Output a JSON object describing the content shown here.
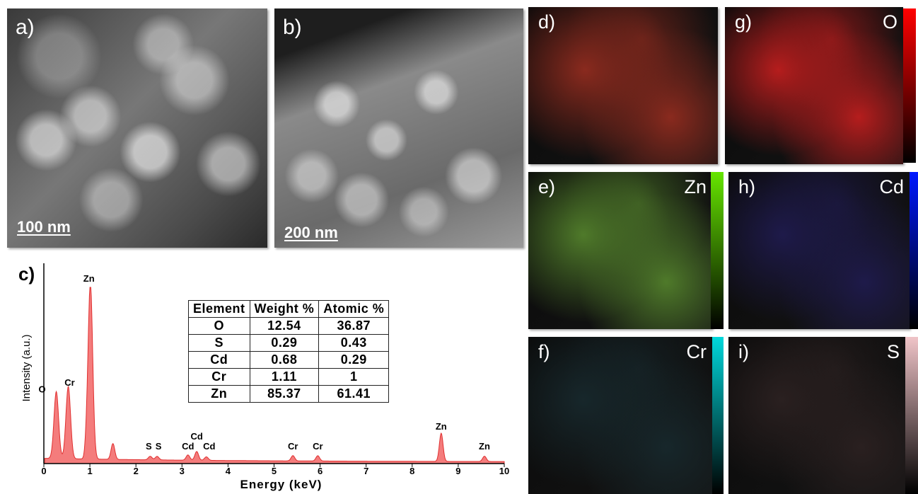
{
  "panels": {
    "a": {
      "label": "a)",
      "scale_bar": "100 nm"
    },
    "b": {
      "label": "b)",
      "scale_bar": "200 nm"
    },
    "c": {
      "label": "c)"
    }
  },
  "maps": [
    {
      "key": "d",
      "label": "d)",
      "element": "",
      "color": "#8a2a1e",
      "colorbar": ""
    },
    {
      "key": "g",
      "label": "g)",
      "element": "O",
      "color": "#b51d1d",
      "colorbar": "#ff0000"
    },
    {
      "key": "e",
      "label": "e)",
      "element": "Zn",
      "color": "#4f7a2a",
      "colorbar": "#66e600"
    },
    {
      "key": "h",
      "label": "h)",
      "element": "Cd",
      "color": "#1e1a4a",
      "colorbar": "#0018ff"
    },
    {
      "key": "f",
      "label": "f)",
      "element": "Cr",
      "color": "#17272b",
      "colorbar": "#00d8dc"
    },
    {
      "key": "i",
      "label": "i)",
      "element": "S",
      "color": "#2a2020",
      "colorbar": "#f0c4c8"
    }
  ],
  "composition_table": {
    "headers": [
      "Element",
      "Weight %",
      "Atomic %"
    ],
    "rows": [
      [
        "O",
        "12.54",
        "36.87"
      ],
      [
        "S",
        "0.29",
        "0.43"
      ],
      [
        "Cd",
        "0.68",
        "0.29"
      ],
      [
        "Cr",
        "1.11",
        "1"
      ],
      [
        "Zn",
        "85.37",
        "61.41"
      ]
    ]
  },
  "chart_data": {
    "type": "area",
    "xlabel": "Energy (keV)",
    "ylabel": "Intensity (a.u.)",
    "xlim": [
      0,
      10
    ],
    "xticks": [
      0,
      1,
      2,
      3,
      4,
      5,
      6,
      7,
      8,
      9,
      10
    ],
    "fill_color": "#f47c7c",
    "line_color": "#e03030",
    "peaks": [
      {
        "label": "O",
        "x": 0.27,
        "height": 0.38
      },
      {
        "label": "Cr",
        "x": 0.53,
        "height": 0.41
      },
      {
        "label": "Zn",
        "x": 1.01,
        "height": 1.0
      },
      {
        "label": "S",
        "x": 2.31,
        "height": 0.02
      },
      {
        "label": "S",
        "x": 2.46,
        "height": 0.02
      },
      {
        "label": "Cd",
        "x": 3.13,
        "height": 0.03
      },
      {
        "label": "Cd",
        "x": 3.32,
        "height": 0.05
      },
      {
        "label": "Cd",
        "x": 3.53,
        "height": 0.02
      },
      {
        "label": "Cr",
        "x": 5.41,
        "height": 0.03
      },
      {
        "label": "Cr",
        "x": 5.95,
        "height": 0.03
      },
      {
        "label": "Zn",
        "x": 8.63,
        "height": 0.16
      },
      {
        "label": "Zn",
        "x": 9.57,
        "height": 0.03
      }
    ]
  }
}
